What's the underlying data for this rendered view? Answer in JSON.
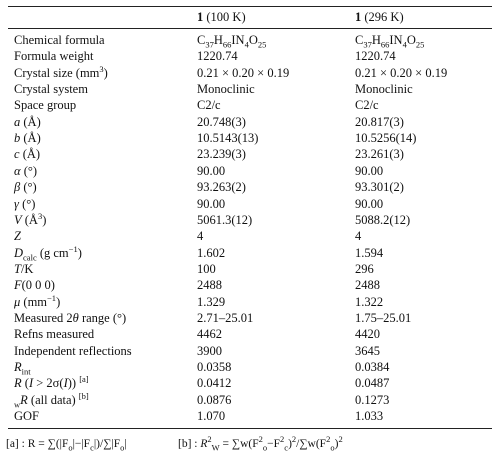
{
  "table": {
    "header": [
      [
        {
          "text": "1",
          "style": "bold"
        },
        " (100 K)"
      ],
      [
        {
          "text": "1",
          "style": "bold"
        },
        " (296 K)"
      ]
    ],
    "rows": [
      {
        "label": "Chemical formula",
        "values": [
          [
            "C",
            {
              "text": "37",
              "style": "sub"
            },
            "H",
            {
              "text": "66",
              "style": "sub"
            },
            "IN",
            {
              "text": "4",
              "style": "sub"
            },
            "O",
            {
              "text": "25",
              "style": "sub"
            }
          ],
          [
            "C",
            {
              "text": "37",
              "style": "sub"
            },
            "H",
            {
              "text": "66",
              "style": "sub"
            },
            "IN",
            {
              "text": "4",
              "style": "sub"
            },
            "O",
            {
              "text": "25",
              "style": "sub"
            }
          ]
        ]
      },
      {
        "label": "Formula weight",
        "values": [
          "1220.74",
          "1220.74"
        ]
      },
      {
        "label": [
          "Crystal size (mm",
          {
            "text": "3",
            "style": "sup"
          },
          ")"
        ],
        "values": [
          "0.21 × 0.20 × 0.19",
          "0.21 × 0.20 × 0.19"
        ]
      },
      {
        "label": "Crystal system",
        "values": [
          "Monoclinic",
          "Monoclinic"
        ]
      },
      {
        "label": "Space group",
        "values": [
          "C2/c",
          "C2/c"
        ]
      },
      {
        "label": [
          {
            "text": "a",
            "style": "italic"
          },
          " (Å)"
        ],
        "values": [
          "20.748(3)",
          "20.817(3)"
        ]
      },
      {
        "label": [
          {
            "text": "b",
            "style": "italic"
          },
          " (Å)"
        ],
        "values": [
          "10.5143(13)",
          "10.5256(14)"
        ]
      },
      {
        "label": [
          {
            "text": "c",
            "style": "italic"
          },
          " (Å)"
        ],
        "values": [
          "23.239(3)",
          "23.261(3)"
        ]
      },
      {
        "label": [
          {
            "text": "α",
            "style": "italic"
          },
          " (°)"
        ],
        "values": [
          "90.00",
          "90.00"
        ]
      },
      {
        "label": [
          {
            "text": "β",
            "style": "italic"
          },
          " (°)"
        ],
        "values": [
          "93.263(2)",
          "93.301(2)"
        ]
      },
      {
        "label": [
          {
            "text": "γ",
            "style": "italic"
          },
          " (°)"
        ],
        "values": [
          "90.00",
          "90.00"
        ]
      },
      {
        "label": [
          {
            "text": "V",
            "style": "italic"
          },
          " (Å",
          {
            "text": "3",
            "style": "sup"
          },
          ")"
        ],
        "values": [
          "5061.3(12)",
          "5088.2(12)"
        ]
      },
      {
        "label": [
          {
            "text": "Z",
            "style": "italic"
          }
        ],
        "values": [
          "4",
          "4"
        ]
      },
      {
        "label": [
          {
            "text": "D",
            "style": "italic"
          },
          {
            "text": "calc",
            "style": "sub"
          },
          " (g cm",
          {
            "text": "−1",
            "style": "sup"
          },
          ")"
        ],
        "values": [
          "1.602",
          "1.594"
        ]
      },
      {
        "label": [
          {
            "text": "T",
            "style": "italic"
          },
          "/K"
        ],
        "values": [
          "100",
          "296"
        ]
      },
      {
        "label": [
          {
            "text": "F",
            "style": "italic"
          },
          "(0 0 0)"
        ],
        "values": [
          "2488",
          "2488"
        ]
      },
      {
        "label": [
          {
            "text": "μ",
            "style": "italic"
          },
          " (mm",
          {
            "text": "−1",
            "style": "sup"
          },
          ")"
        ],
        "values": [
          "1.329",
          "1.322"
        ]
      },
      {
        "label": [
          "Measured 2",
          {
            "text": "θ",
            "style": "italic"
          },
          " range (°)"
        ],
        "values": [
          "2.71–25.01",
          "1.75–25.01"
        ]
      },
      {
        "label": "Refns measured",
        "values": [
          "4462",
          "4420"
        ]
      },
      {
        "label": "Independent reflections",
        "values": [
          "3900",
          "3645"
        ]
      },
      {
        "label": [
          {
            "text": "R",
            "style": "italic"
          },
          {
            "text": "int",
            "style": "sub"
          }
        ],
        "values": [
          "0.0358",
          "0.0384"
        ]
      },
      {
        "label": [
          {
            "text": "R",
            "style": "italic"
          },
          " (",
          {
            "text": "I",
            "style": "italic"
          },
          " > 2σ(",
          {
            "text": "I",
            "style": "italic"
          },
          ")) ",
          {
            "text": "[a]",
            "style": "sup"
          }
        ],
        "values": [
          "0.0412",
          "0.0487"
        ]
      },
      {
        "label": [
          {
            "text": "w",
            "style": "sub"
          },
          {
            "text": "R",
            "style": "italic"
          },
          " (all data) ",
          {
            "text": "[b]",
            "style": "sup"
          }
        ],
        "values": [
          "0.0876",
          "0.1273"
        ]
      },
      {
        "label": "GOF",
        "values": [
          "1.070",
          "1.033"
        ]
      }
    ],
    "footnotes": [
      [
        "[a] : R = ∑(|F",
        {
          "text": "o",
          "style": "sub"
        },
        "|−|F",
        {
          "text": "c",
          "style": "sub"
        },
        "|)/∑|F",
        {
          "text": "o",
          "style": "sub"
        },
        "|"
      ],
      [
        "[b] : ",
        {
          "text": "R",
          "style": "italic"
        },
        {
          "text": "2",
          "style": "sup"
        },
        {
          "text": "W",
          "style": "sub"
        },
        " = ∑w(F",
        {
          "text": "2",
          "style": "sup"
        },
        {
          "text": "o",
          "style": "sub"
        },
        "−F",
        {
          "text": "2",
          "style": "sup"
        },
        {
          "text": "c",
          "style": "sub"
        },
        ")",
        {
          "text": "2",
          "style": "sup"
        },
        "/∑w(F",
        {
          "text": "2",
          "style": "sup"
        },
        {
          "text": "o",
          "style": "sub"
        },
        ")",
        {
          "text": "2",
          "style": "sup"
        }
      ]
    ]
  }
}
